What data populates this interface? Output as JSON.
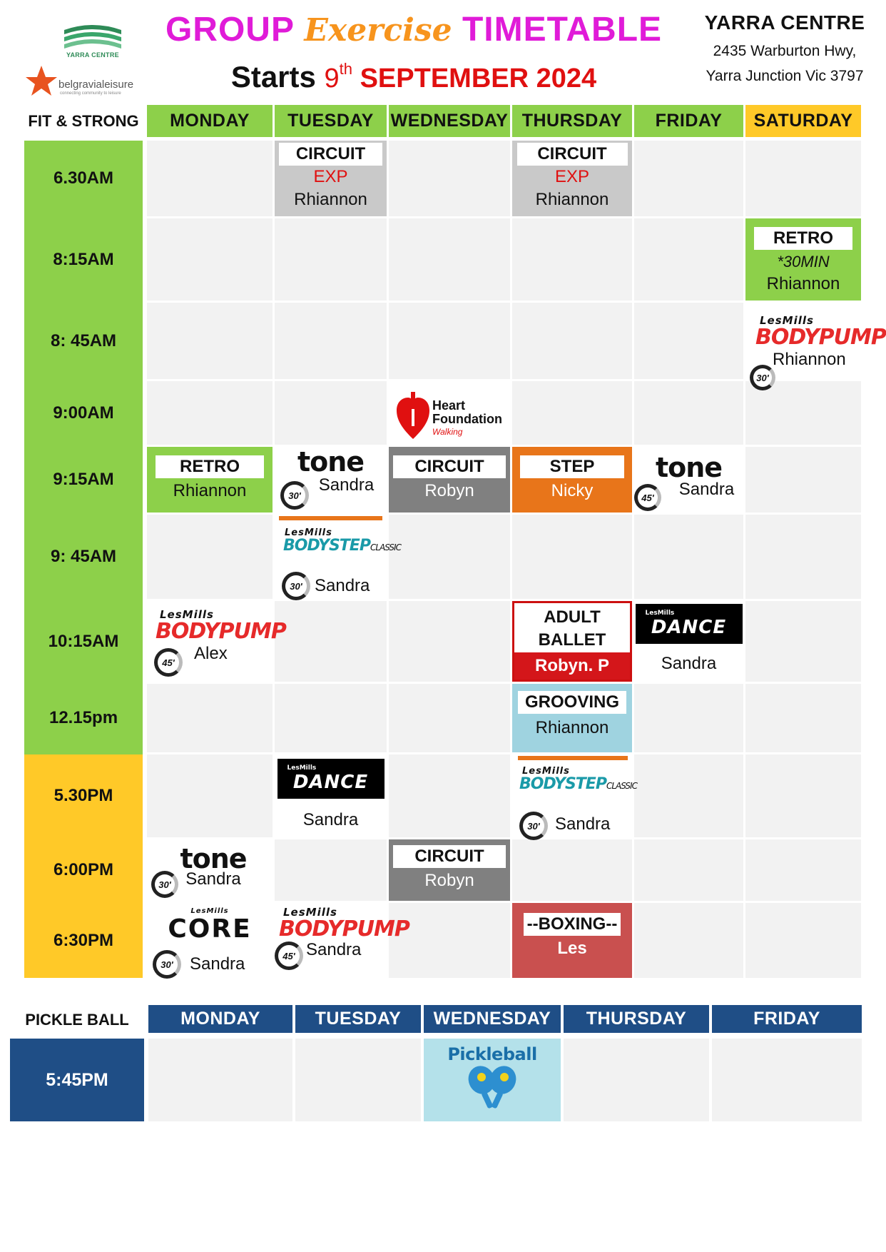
{
  "header": {
    "logo1_text": "YARRA CENTRE",
    "logo2_text": "belgravialeisure",
    "logo2_sub": "connecting community to leisure",
    "title_a": "GROUP ",
    "title_b": "Exercise",
    "title_c": " TIMETABLE",
    "starts_label": "Starts ",
    "starts_day": "9",
    "starts_day_suffix": "th",
    "starts_date": " SEPTEMBER 2024",
    "centre_name": "YARRA CENTRE",
    "address_line1": "2435 Warburton Hwy,",
    "address_line2": "Yarra Junction Vic 3797"
  },
  "fit_strong": {
    "section_label": "FIT & STRONG",
    "days": [
      "MONDAY",
      "TUESDAY",
      "WEDNESDAY",
      "THURSDAY",
      "FRIDAY",
      "SATURDAY"
    ],
    "times": [
      "6.30AM",
      "8:15AM",
      "8: 45AM",
      "9:00AM",
      "9:15AM",
      "9: 45AM",
      "10:15AM",
      "12.15pm",
      "5.30PM",
      "6:00PM",
      "6:30PM"
    ],
    "classes": {
      "tue_630": {
        "title": "CIRCUIT",
        "sub": "EXP",
        "instructor": "Rhiannon"
      },
      "thu_630": {
        "title": "CIRCUIT",
        "sub": "EXP",
        "instructor": "Rhiannon"
      },
      "sat_815": {
        "title": "RETRO",
        "sub": "*30MIN",
        "instructor": "Rhiannon"
      },
      "sat_845": {
        "brand": "LesMills",
        "program": "BODYPUMP",
        "instructor": "Rhiannon",
        "duration": "30'"
      },
      "wed_900": {
        "brand_line1": "Heart",
        "brand_line2": "Foundation",
        "brand_line3": "Walking"
      },
      "mon_915": {
        "title": "RETRO",
        "instructor": "Rhiannon"
      },
      "tue_915": {
        "program": "tone",
        "instructor": "Sandra",
        "duration": "30'"
      },
      "wed_915": {
        "title": "CIRCUIT",
        "instructor": "Robyn"
      },
      "thu_915": {
        "title": "STEP",
        "instructor": "Nicky"
      },
      "fri_915": {
        "program": "tone",
        "instructor": "Sandra",
        "duration": "45'"
      },
      "tue_945": {
        "brand": "LesMills",
        "program": "BODYSTEP",
        "variant": "CLASSIC",
        "instructor": "Sandra",
        "duration": "30'"
      },
      "mon_1015": {
        "brand": "LesMills",
        "program": "BODYPUMP",
        "instructor": "Alex",
        "duration": "45'"
      },
      "thu_1015": {
        "title_line1": "ADULT",
        "title_line2": "BALLET",
        "instructor": "Robyn. P"
      },
      "fri_1015": {
        "brand": "LesMills",
        "program": "DANCE",
        "instructor": "Sandra"
      },
      "thu_1215": {
        "title": "GROOVING",
        "instructor": "Rhiannon"
      },
      "tue_530": {
        "brand": "LesMills",
        "program": "DANCE",
        "instructor": "Sandra"
      },
      "thu_530": {
        "brand": "LesMills",
        "program": "BODYSTEP",
        "variant": "CLASSIC",
        "instructor": "Sandra",
        "duration": "30'"
      },
      "mon_600": {
        "program": "tone",
        "instructor": "Sandra",
        "duration": "30'"
      },
      "wed_600": {
        "title": "CIRCUIT",
        "instructor": "Robyn"
      },
      "mon_630": {
        "brand": "LesMills",
        "program": "CORE",
        "instructor": "Sandra",
        "duration": "30'"
      },
      "tue_630pm": {
        "brand": "LesMills",
        "program": "BODYPUMP",
        "instructor": "Sandra",
        "duration": "45'"
      },
      "thu_630pm": {
        "title": "--BOXING--",
        "instructor": "Les"
      }
    }
  },
  "pickle_ball": {
    "section_label": "PICKLE BALL",
    "days": [
      "MONDAY",
      "TUESDAY",
      "WEDNESDAY",
      "THURSDAY",
      "FRIDAY"
    ],
    "time": "5:45PM",
    "wed_label": "Pickleball"
  },
  "colors": {
    "green": "#8dd04a",
    "yellow": "#ffc928",
    "grey": "#c9c9c9",
    "dark_grey": "#808080",
    "orange": "#e8751a",
    "red": "#e01010",
    "light_blue": "#9fd3e0",
    "boxing_red": "#c9504f",
    "navy": "#1f4e86"
  }
}
